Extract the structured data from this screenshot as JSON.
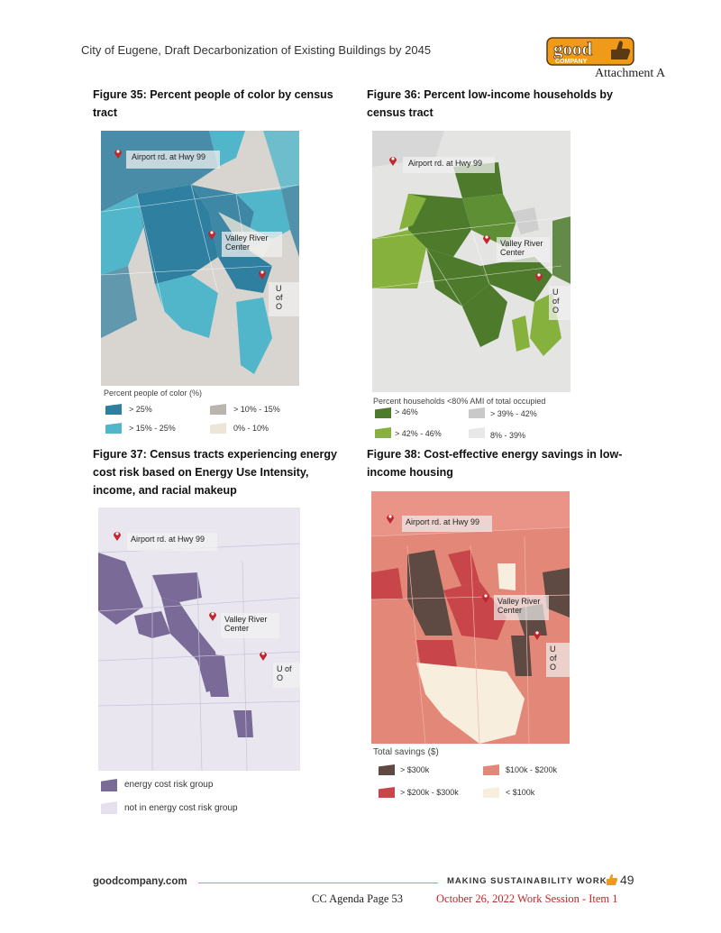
{
  "header": {
    "title": "City of Eugene, Draft Decarbonization of Existing Buildings by 2045",
    "attachment": "Attachment A"
  },
  "logo": {
    "word": "good",
    "sub": "COMPANY",
    "color": "#f09a1a",
    "outline": "#5a3a12"
  },
  "figures": [
    {
      "caption": "Figure 35: Percent people of color by census tract",
      "legend_title": "Percent people of color (%)",
      "legend": [
        {
          "label": "> 25%",
          "color": "#2f7fa0"
        },
        {
          "label": "> 10% - 15%",
          "color": "#b9b4ae"
        },
        {
          "label": "> 15% - 25%",
          "color": "#52b6cb"
        },
        {
          "label": "0% - 10%",
          "color": "#ece6d8"
        }
      ]
    },
    {
      "caption": "Figure 36: Percent low-income households by census tract",
      "legend_title": "Percent households <80% AMI of total occupied",
      "legend": [
        {
          "label": "> 46%",
          "color": "#4e7a2c"
        },
        {
          "label": "> 39% - 42%",
          "color": "#c9c9c9"
        },
        {
          "label": "> 42% - 46%",
          "color": "#86b13c"
        },
        {
          "label": "8% - 39%",
          "color": "#e8e8e8"
        }
      ]
    },
    {
      "caption": "Figure 37: Census tracts experiencing energy cost risk based on Energy Use Intensity, income, and racial makeup",
      "legend": [
        {
          "label": "energy cost risk group",
          "color": "#7a6a98"
        },
        {
          "label": "not in energy cost risk group",
          "color": "#e4e0ee"
        }
      ]
    },
    {
      "caption": "Figure 38: Cost-effective energy savings in low-income housing",
      "legend_title": "Total savings ($)",
      "legend": [
        {
          "label": "> $300k",
          "color": "#5e4a42"
        },
        {
          "label": "$100k - $200k",
          "color": "#e38878"
        },
        {
          "label": "> $200k - $300k",
          "color": "#c8464a"
        },
        {
          "label": "< $100k",
          "color": "#f8eedd"
        }
      ]
    }
  ],
  "places": {
    "airport": "Airport rd. at Hwy 99",
    "valley": "Valley River\nCenter",
    "uofo": "U of O"
  },
  "footer": {
    "site": "goodcompany.com",
    "tagline": "MAKING SUSTAINABILITY WORK",
    "page": "49",
    "agenda": "CC Agenda Page 53",
    "session": "October 26, 2022 Work Session - Item 1"
  }
}
